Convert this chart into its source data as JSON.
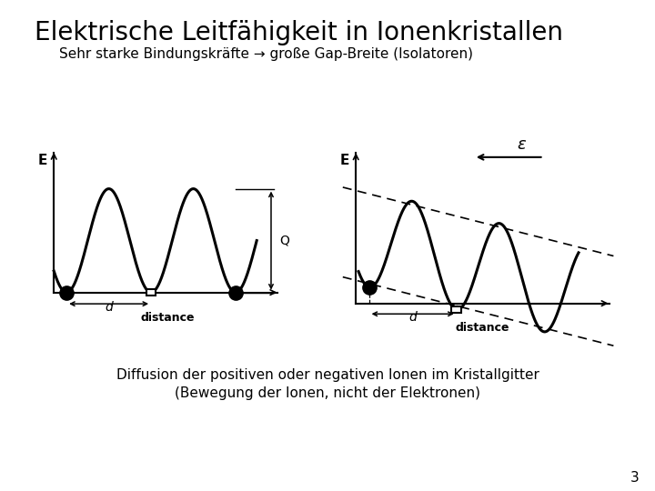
{
  "title": "Elektrische Leitfähigkeit in Ionenkristallen",
  "subtitle": "Sehr starke Bindungskräfte → große Gap-Breite (Isolatoren)",
  "bottom_text1": "Diffusion der positiven oder negativen Ionen im Kristallgitter",
  "bottom_text2": "(Bewegung der Ionen, nicht der Elektronen)",
  "page_number": "3",
  "bg_color": "#ffffff",
  "text_color": "#000000"
}
